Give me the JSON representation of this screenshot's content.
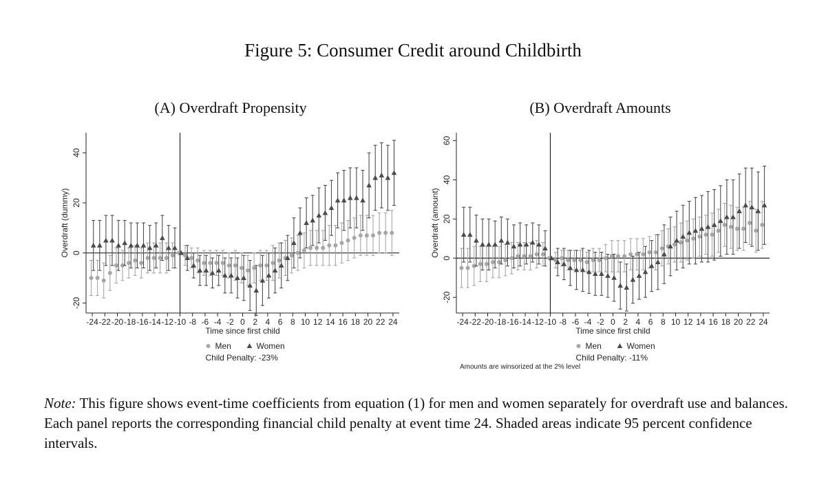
{
  "figure_title": "Figure 5: Consumer Credit around Childbirth",
  "note": {
    "label": "Note:",
    "text": " This figure shows event-time coefficients from equation (1) for men and women separately for overdraft use and balances. Each panel reports the corresponding financial child penalty at event time 24. Shaded areas indicate 95 percent confidence intervals."
  },
  "colors": {
    "men": "#a6a6a6",
    "women": "#4a4a4a",
    "axis": "#222222"
  },
  "chart_data": [
    {
      "type": "scatter",
      "panel_title": "(A) Overdraft Propensity",
      "xlabel": "Time since first child",
      "ylabel": "Overdraft (dummy)",
      "ylim": [
        -24,
        48
      ],
      "yticks": [
        -20,
        0,
        20,
        40
      ],
      "xlim": [
        -25,
        25
      ],
      "xticks": [
        -24,
        -22,
        -20,
        -18,
        -16,
        -14,
        -12,
        -10,
        -8,
        -6,
        -4,
        -2,
        0,
        2,
        4,
        6,
        8,
        10,
        12,
        14,
        16,
        18,
        20,
        22,
        24
      ],
      "event_line_x": -10,
      "legend": {
        "men": "Men",
        "women": "Women"
      },
      "penalty_text": "Child Penalty: -23%",
      "series": [
        {
          "name": "Men",
          "marker": "circle",
          "x": [
            -24,
            -23,
            -22,
            -21,
            -20,
            -19,
            -18,
            -17,
            -16,
            -15,
            -14,
            -13,
            -12,
            -11,
            -10,
            -9,
            -8,
            -7,
            -6,
            -5,
            -4,
            -3,
            -2,
            -1,
            0,
            1,
            2,
            3,
            4,
            5,
            6,
            7,
            8,
            9,
            10,
            11,
            12,
            13,
            14,
            15,
            16,
            17,
            18,
            19,
            20,
            21,
            22,
            23,
            24
          ],
          "y": [
            -10,
            -10,
            -11,
            -8,
            -5,
            -5,
            -4,
            -3,
            -4,
            -2,
            -2,
            -2,
            -2,
            -1,
            0,
            -1,
            -2,
            -3,
            -4,
            -4,
            -4,
            -4,
            -5,
            -5,
            -6,
            -7,
            -6,
            -5,
            -5,
            -4,
            -3,
            -2,
            -1,
            0,
            1,
            2,
            2,
            2,
            3,
            3,
            4,
            5,
            6,
            7,
            7,
            7,
            8,
            8,
            8
          ],
          "err": [
            7,
            7,
            7,
            7,
            7,
            6,
            6,
            6,
            6,
            6,
            6,
            6,
            6,
            5,
            0,
            4,
            4,
            5,
            5,
            5,
            5,
            5,
            5,
            6,
            6,
            6,
            6,
            6,
            6,
            7,
            7,
            7,
            7,
            7,
            7,
            7,
            7,
            7,
            8,
            8,
            8,
            8,
            8,
            8,
            8,
            8,
            8,
            8,
            9
          ]
        },
        {
          "name": "Women",
          "marker": "triangle",
          "x": [
            -24,
            -23,
            -22,
            -21,
            -20,
            -19,
            -18,
            -17,
            -16,
            -15,
            -14,
            -13,
            -12,
            -11,
            -10,
            -9,
            -8,
            -7,
            -6,
            -5,
            -4,
            -3,
            -2,
            -1,
            0,
            1,
            2,
            3,
            4,
            5,
            6,
            7,
            8,
            9,
            10,
            11,
            12,
            13,
            14,
            15,
            16,
            17,
            18,
            19,
            20,
            21,
            22,
            23,
            24
          ],
          "y": [
            3,
            3,
            5,
            5,
            3,
            4,
            3,
            3,
            3,
            2,
            3,
            6,
            2,
            2,
            0,
            -2,
            -5,
            -7,
            -7,
            -8,
            -7,
            -9,
            -9,
            -10,
            -10,
            -13,
            -15,
            -11,
            -9,
            -7,
            -5,
            -2,
            4,
            8,
            12,
            13,
            15,
            16,
            18,
            21,
            21,
            22,
            22,
            21,
            27,
            30,
            31,
            30,
            32
          ],
          "err": [
            10,
            10,
            10,
            10,
            10,
            9,
            9,
            9,
            9,
            9,
            9,
            9,
            9,
            8,
            0,
            5,
            5,
            6,
            6,
            6,
            6,
            7,
            7,
            8,
            9,
            10,
            10,
            10,
            9,
            9,
            9,
            9,
            10,
            10,
            10,
            10,
            11,
            11,
            11,
            11,
            12,
            12,
            12,
            12,
            13,
            13,
            13,
            13,
            13
          ]
        }
      ]
    },
    {
      "type": "scatter",
      "panel_title": "(B) Overdraft Amounts",
      "xlabel": "Time since first child",
      "ylabel": "Overdraft (amount)",
      "ylim": [
        -28,
        64
      ],
      "yticks": [
        -20,
        0,
        20,
        40,
        60
      ],
      "xlim": [
        -25,
        25
      ],
      "xticks": [
        -24,
        -22,
        -20,
        -18,
        -16,
        -14,
        -12,
        -10,
        -8,
        -6,
        -4,
        -2,
        0,
        2,
        4,
        6,
        8,
        10,
        12,
        14,
        16,
        18,
        20,
        22,
        24
      ],
      "event_line_x": -10,
      "legend": {
        "men": "Men",
        "women": "Women"
      },
      "penalty_text": "Child Penalty: -11%",
      "footnote": "Amounts are winsorized at the 2% level",
      "series": [
        {
          "name": "Men",
          "marker": "circle",
          "x": [
            -24,
            -23,
            -22,
            -21,
            -20,
            -19,
            -18,
            -17,
            -16,
            -15,
            -14,
            -13,
            -12,
            -11,
            -10,
            -9,
            -8,
            -7,
            -6,
            -5,
            -4,
            -3,
            -2,
            -1,
            0,
            1,
            2,
            3,
            4,
            5,
            6,
            7,
            8,
            9,
            10,
            11,
            12,
            13,
            14,
            15,
            16,
            17,
            18,
            19,
            20,
            21,
            22,
            23,
            24
          ],
          "y": [
            -5,
            -5,
            -4,
            -3,
            -3,
            -2,
            -2,
            -1,
            0,
            1,
            1,
            1,
            2,
            2,
            0,
            -1,
            0,
            -1,
            -1,
            -1,
            -2,
            -1,
            -1,
            0,
            1,
            1,
            1,
            2,
            2,
            2,
            3,
            3,
            5,
            6,
            7,
            8,
            9,
            10,
            11,
            12,
            12,
            14,
            17,
            16,
            15,
            15,
            18,
            14,
            17
          ],
          "err": [
            10,
            10,
            10,
            9,
            9,
            8,
            8,
            8,
            8,
            7,
            7,
            7,
            7,
            6,
            0,
            4,
            4,
            5,
            5,
            5,
            5,
            6,
            6,
            7,
            8,
            8,
            8,
            8,
            8,
            8,
            8,
            9,
            9,
            9,
            9,
            10,
            10,
            10,
            10,
            10,
            11,
            11,
            11,
            11,
            11,
            11,
            11,
            11,
            12
          ]
        },
        {
          "name": "Women",
          "marker": "triangle",
          "x": [
            -24,
            -23,
            -22,
            -21,
            -20,
            -19,
            -18,
            -17,
            -16,
            -15,
            -14,
            -13,
            -12,
            -11,
            -10,
            -9,
            -8,
            -7,
            -6,
            -5,
            -4,
            -3,
            -2,
            -1,
            0,
            1,
            2,
            3,
            4,
            5,
            6,
            7,
            8,
            9,
            10,
            11,
            12,
            13,
            14,
            15,
            16,
            17,
            18,
            19,
            20,
            21,
            22,
            23,
            24
          ],
          "y": [
            12,
            12,
            9,
            7,
            7,
            7,
            9,
            8,
            6,
            7,
            7,
            8,
            7,
            5,
            0,
            -2,
            -3,
            -5,
            -6,
            -6,
            -7,
            -8,
            -8,
            -9,
            -10,
            -14,
            -15,
            -11,
            -9,
            -7,
            -4,
            -2,
            2,
            6,
            9,
            11,
            13,
            14,
            15,
            16,
            17,
            19,
            21,
            21,
            24,
            27,
            26,
            24,
            27
          ],
          "err": [
            14,
            14,
            13,
            13,
            13,
            12,
            12,
            12,
            11,
            11,
            10,
            10,
            10,
            9,
            0,
            7,
            8,
            9,
            10,
            11,
            11,
            11,
            11,
            11,
            12,
            12,
            12,
            12,
            12,
            13,
            13,
            14,
            15,
            15,
            15,
            16,
            16,
            17,
            17,
            18,
            18,
            18,
            19,
            19,
            19,
            19,
            20,
            20,
            20
          ]
        }
      ]
    }
  ]
}
